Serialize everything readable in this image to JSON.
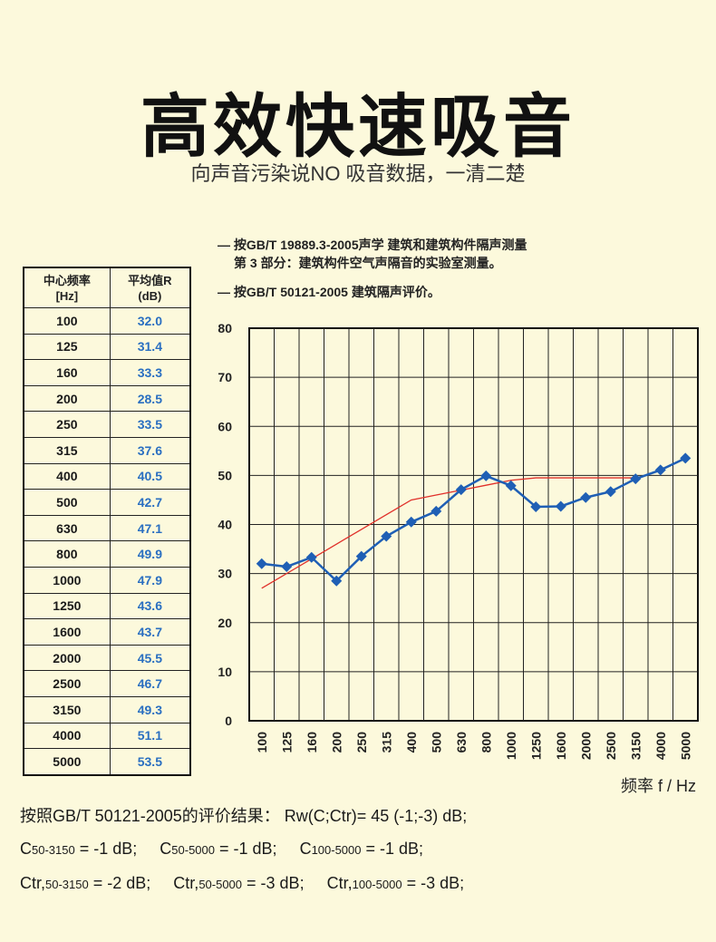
{
  "header": {
    "title": "高效快速吸音",
    "subtitle": "向声音污染说NO 吸音数据，一清二楚"
  },
  "standards": {
    "line1": "— 按GB/T 19889.3-2005声学 建筑和建筑构件隔声测量",
    "line2": "第 3 部分：建筑构件空气声隔音的实验室测量。",
    "line3": "— 按GB/T 50121-2005 建筑隔声评价。"
  },
  "table": {
    "header_freq": [
      "中心频率",
      "[Hz]"
    ],
    "header_val": [
      "平均值R",
      "(dB)"
    ]
  },
  "chart_data": {
    "type": "line",
    "categories": [
      "100",
      "125",
      "160",
      "200",
      "250",
      "315",
      "400",
      "500",
      "630",
      "800",
      "1000",
      "1250",
      "1600",
      "2000",
      "2500",
      "3150",
      "4000",
      "5000"
    ],
    "series": [
      {
        "values": [
          32.0,
          31.4,
          33.3,
          28.5,
          33.5,
          37.6,
          40.5,
          42.7,
          47.1,
          49.9,
          47.9,
          43.6,
          43.7,
          45.5,
          46.7,
          49.3,
          51.1,
          53.5
        ],
        "color": "#1f5fb5"
      },
      {
        "values": [
          27,
          30,
          33,
          36,
          39,
          42,
          45,
          46,
          47,
          48,
          49,
          49.5,
          49.5,
          49.5,
          49.5,
          49.5,
          null,
          null
        ],
        "color": "#e0302a"
      }
    ],
    "ylim": [
      0,
      80
    ],
    "yticks": [
      0,
      10,
      20,
      30,
      40,
      50,
      60,
      70,
      80
    ],
    "xlabel": "频率 f / Hz",
    "grid": true
  },
  "results": {
    "line1": "按照GB/T 50121-2005的评价结果： Rw(C;Ctr)= 45 (-1;-3) dB;",
    "c1_pre": "C",
    "c1_sub": "50-3150",
    "c1_val": " = -1 dB;",
    "c2_pre": "C",
    "c2_sub": "50-5000",
    "c2_val": " = -1 dB;",
    "c3_pre": "C",
    "c3_sub": "100-5000",
    "c3_val": " = -1 dB;",
    "t1_pre": "Ctr,",
    "t1_sub": "50-3150",
    "t1_val": " = -2 dB;",
    "t2_pre": "Ctr,",
    "t2_sub": "50-5000",
    "t2_val": " = -3 dB;",
    "t3_pre": "Ctr,",
    "t3_sub": "100-5000",
    "t3_val": " = -3 dB;"
  }
}
